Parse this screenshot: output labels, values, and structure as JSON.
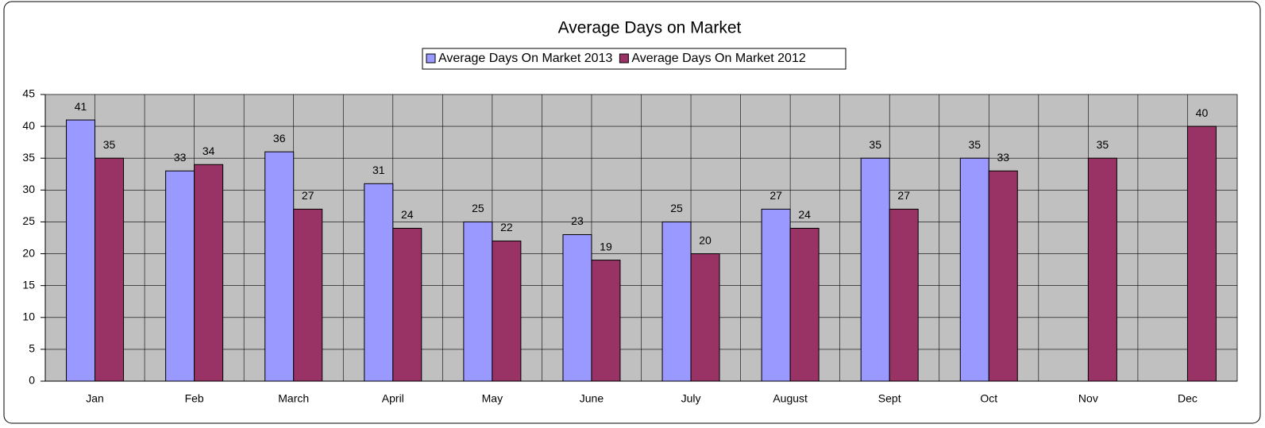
{
  "chart_data": {
    "type": "bar",
    "title": "Average Days on Market",
    "categories": [
      "Jan",
      "Feb",
      "March",
      "April",
      "May",
      "June",
      "July",
      "August",
      "Sept",
      "Oct",
      "Nov",
      "Dec"
    ],
    "series": [
      {
        "name": "Average Days On Market 2013",
        "color": "#9999ff",
        "values": [
          41,
          33,
          36,
          31,
          25,
          23,
          25,
          27,
          35,
          35,
          null,
          null
        ]
      },
      {
        "name": "Average Days On Market 2012",
        "color": "#993366",
        "values": [
          35,
          34,
          27,
          24,
          22,
          19,
          20,
          24,
          27,
          33,
          35,
          40
        ]
      }
    ],
    "ylim": [
      0,
      45
    ],
    "yticks": [
      0,
      5,
      10,
      15,
      20,
      25,
      30,
      35,
      40,
      45
    ],
    "grid": true
  }
}
